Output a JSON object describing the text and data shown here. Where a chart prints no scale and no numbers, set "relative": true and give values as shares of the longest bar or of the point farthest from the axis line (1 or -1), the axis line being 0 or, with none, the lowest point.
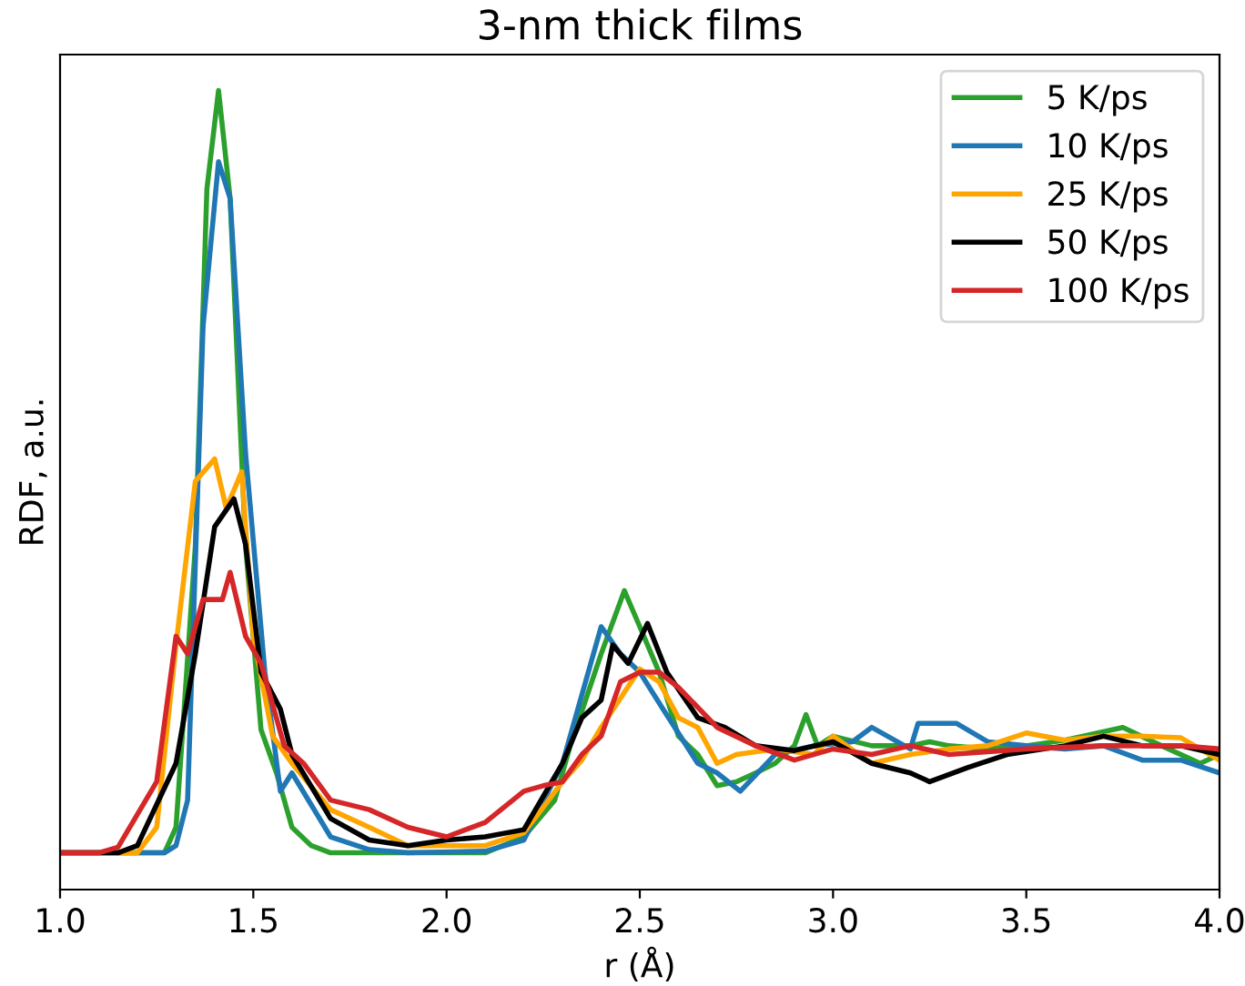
{
  "chart_data": {
    "type": "line",
    "title": "3-nm thick films",
    "xlabel": "r (Å)",
    "ylabel": "RDF, a.u.",
    "relative": true,
    "xlim": [
      1.0,
      4.0
    ],
    "xticks": [
      {
        "value": 1.0,
        "label": "1.0"
      },
      {
        "value": 1.5,
        "label": "1.5"
      },
      {
        "value": 2.0,
        "label": "2.0"
      },
      {
        "value": 2.5,
        "label": "2.5"
      },
      {
        "value": 3.0,
        "label": "3.0"
      },
      {
        "value": 3.5,
        "label": "3.5"
      },
      {
        "value": 4.0,
        "label": "4.0"
      }
    ],
    "legend": "top right",
    "grid": false,
    "tick_labels": "x",
    "series": [
      {
        "name": "5 K/ps",
        "color": "#2ca02c",
        "x": [
          1.0,
          1.2,
          1.27,
          1.3,
          1.35,
          1.38,
          1.41,
          1.44,
          1.48,
          1.52,
          1.56,
          1.6,
          1.65,
          1.7,
          2.1,
          2.2,
          2.28,
          2.32,
          2.4,
          2.46,
          2.5,
          2.55,
          2.6,
          2.65,
          2.7,
          2.75,
          2.8,
          2.85,
          2.9,
          2.93,
          2.96,
          3.0,
          3.1,
          3.2,
          3.25,
          3.3,
          3.4,
          3.5,
          3.6,
          3.75,
          3.85,
          3.95,
          4.0
        ],
        "values": [
          0.046,
          0.046,
          0.046,
          0.078,
          0.43,
          0.877,
          1.0,
          0.865,
          0.43,
          0.2,
          0.146,
          0.078,
          0.055,
          0.046,
          0.046,
          0.066,
          0.112,
          0.18,
          0.295,
          0.374,
          0.329,
          0.272,
          0.192,
          0.169,
          0.13,
          0.135,
          0.146,
          0.158,
          0.18,
          0.219,
          0.18,
          0.192,
          0.18,
          0.18,
          0.185,
          0.18,
          0.176,
          0.18,
          0.187,
          0.203,
          0.18,
          0.158,
          0.169
        ]
      },
      {
        "name": "10 K/ps",
        "color": "#1f77b4",
        "x": [
          1.0,
          1.27,
          1.3,
          1.33,
          1.37,
          1.41,
          1.44,
          1.48,
          1.53,
          1.57,
          1.6,
          1.7,
          1.8,
          1.9,
          2.1,
          2.2,
          2.3,
          2.4,
          2.45,
          2.5,
          2.56,
          2.65,
          2.7,
          2.76,
          2.85,
          2.95,
          3.05,
          3.1,
          3.2,
          3.22,
          3.32,
          3.4,
          3.5,
          3.6,
          3.7,
          3.8,
          3.9,
          4.0
        ],
        "values": [
          0.046,
          0.046,
          0.055,
          0.112,
          0.705,
          0.911,
          0.865,
          0.546,
          0.272,
          0.123,
          0.146,
          0.066,
          0.05,
          0.046,
          0.048,
          0.062,
          0.158,
          0.329,
          0.295,
          0.272,
          0.226,
          0.158,
          0.146,
          0.123,
          0.169,
          0.18,
          0.185,
          0.203,
          0.176,
          0.208,
          0.208,
          0.185,
          0.18,
          0.176,
          0.18,
          0.162,
          0.162,
          0.146
        ]
      },
      {
        "name": "25 K/ps",
        "color": "#ffa500",
        "x": [
          1.0,
          1.2,
          1.25,
          1.3,
          1.35,
          1.4,
          1.43,
          1.47,
          1.5,
          1.55,
          1.6,
          1.7,
          1.8,
          1.9,
          2.0,
          2.1,
          2.2,
          2.3,
          2.35,
          2.4,
          2.5,
          2.55,
          2.6,
          2.65,
          2.7,
          2.75,
          2.85,
          2.95,
          3.0,
          3.1,
          3.2,
          3.3,
          3.4,
          3.5,
          3.6,
          3.7,
          3.8,
          3.9,
          4.0
        ],
        "values": [
          0.046,
          0.046,
          0.078,
          0.306,
          0.511,
          0.539,
          0.477,
          0.523,
          0.317,
          0.192,
          0.158,
          0.1,
          0.078,
          0.055,
          0.055,
          0.055,
          0.071,
          0.135,
          0.162,
          0.203,
          0.276,
          0.26,
          0.215,
          0.203,
          0.158,
          0.169,
          0.176,
          0.169,
          0.192,
          0.158,
          0.169,
          0.176,
          0.18,
          0.196,
          0.187,
          0.192,
          0.192,
          0.19,
          0.162
        ]
      },
      {
        "name": "50 K/ps",
        "color": "#000000",
        "x": [
          1.0,
          1.15,
          1.2,
          1.3,
          1.35,
          1.4,
          1.45,
          1.48,
          1.52,
          1.57,
          1.6,
          1.7,
          1.8,
          1.9,
          2.0,
          2.1,
          2.2,
          2.3,
          2.35,
          2.4,
          2.43,
          2.47,
          2.52,
          2.57,
          2.65,
          2.72,
          2.8,
          2.9,
          3.0,
          3.1,
          3.2,
          3.25,
          3.35,
          3.45,
          3.6,
          3.7,
          3.8,
          3.9,
          4.0
        ],
        "values": [
          0.046,
          0.046,
          0.055,
          0.158,
          0.295,
          0.454,
          0.489,
          0.432,
          0.272,
          0.226,
          0.169,
          0.089,
          0.062,
          0.055,
          0.062,
          0.066,
          0.075,
          0.158,
          0.215,
          0.237,
          0.306,
          0.283,
          0.333,
          0.272,
          0.215,
          0.203,
          0.18,
          0.174,
          0.185,
          0.158,
          0.146,
          0.135,
          0.153,
          0.169,
          0.18,
          0.192,
          0.18,
          0.18,
          0.169
        ]
      },
      {
        "name": "100 K/ps",
        "color": "#d62728",
        "x": [
          1.0,
          1.1,
          1.15,
          1.25,
          1.3,
          1.33,
          1.37,
          1.42,
          1.44,
          1.48,
          1.52,
          1.58,
          1.63,
          1.7,
          1.8,
          1.9,
          2.0,
          2.1,
          2.2,
          2.25,
          2.3,
          2.35,
          2.4,
          2.45,
          2.5,
          2.55,
          2.6,
          2.7,
          2.8,
          2.9,
          3.0,
          3.1,
          3.2,
          3.3,
          3.5,
          3.7,
          3.8,
          3.9,
          4.0
        ],
        "values": [
          0.046,
          0.046,
          0.053,
          0.135,
          0.317,
          0.295,
          0.363,
          0.363,
          0.397,
          0.317,
          0.283,
          0.18,
          0.158,
          0.112,
          0.1,
          0.078,
          0.066,
          0.084,
          0.123,
          0.13,
          0.135,
          0.169,
          0.192,
          0.26,
          0.272,
          0.272,
          0.253,
          0.203,
          0.18,
          0.162,
          0.176,
          0.169,
          0.18,
          0.169,
          0.176,
          0.18,
          0.18,
          0.18,
          0.176
        ]
      }
    ]
  }
}
